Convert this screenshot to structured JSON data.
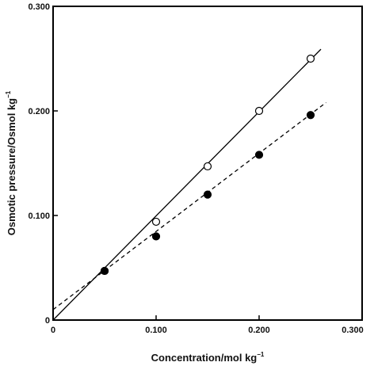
{
  "chart_data": {
    "type": "scatter",
    "xlabel": "Concentration/mol kg",
    "xlabel_sup": "−1",
    "ylabel": "Osmotic pressure/Osmol kg",
    "ylabel_sup": "−1",
    "xlim": [
      0,
      0.3
    ],
    "ylim": [
      0,
      0.3
    ],
    "x_ticks": [
      {
        "value": 0,
        "label": "0"
      },
      {
        "value": 0.1,
        "label": "0.100"
      },
      {
        "value": 0.2,
        "label": "0.200"
      },
      {
        "value": 0.3,
        "label": "0.300"
      }
    ],
    "y_ticks": [
      {
        "value": 0,
        "label": "0"
      },
      {
        "value": 0.1,
        "label": "0.100"
      },
      {
        "value": 0.2,
        "label": "0.200"
      },
      {
        "value": 0.3,
        "label": "0.300"
      }
    ],
    "grid": false,
    "series": [
      {
        "marker": "open-circle",
        "line_style": "solid",
        "x": [
          0.05,
          0.1,
          0.15,
          0.2,
          0.25
        ],
        "y": [
          0.047,
          0.094,
          0.147,
          0.2,
          0.25
        ],
        "fit": {
          "x": [
            0,
            0.26
          ],
          "y": [
            0,
            0.259
          ]
        }
      },
      {
        "marker": "filled-circle",
        "line_style": "dashed",
        "x": [
          0.05,
          0.1,
          0.15,
          0.2,
          0.25
        ],
        "y": [
          0.047,
          0.08,
          0.12,
          0.158,
          0.196
        ],
        "fit": {
          "x": [
            0,
            0.265
          ],
          "y": [
            0.01,
            0.208
          ]
        }
      }
    ]
  }
}
